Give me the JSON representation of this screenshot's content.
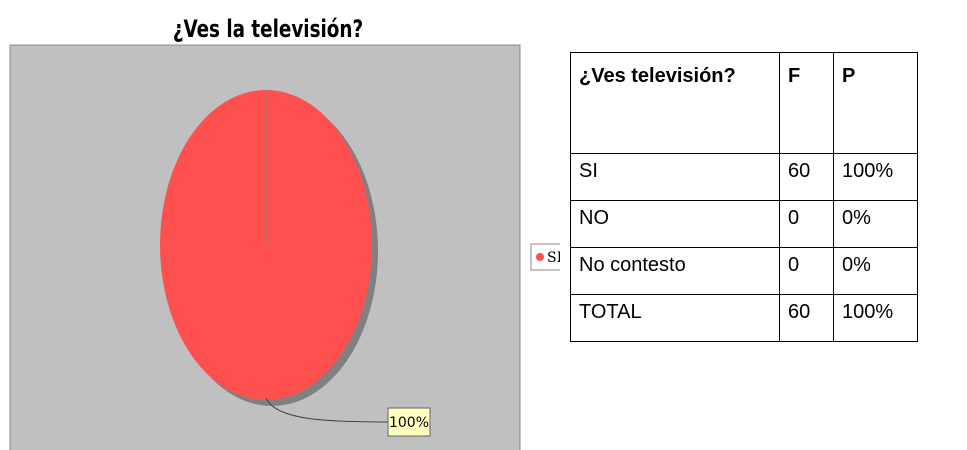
{
  "chart_data": {
    "type": "pie",
    "title": "¿Ves la televisión?",
    "categories": [
      "SI"
    ],
    "values": [
      100
    ],
    "value_labels": [
      "100%"
    ],
    "colors": [
      "#ff5050"
    ],
    "legend": "right"
  },
  "table": {
    "header": [
      "¿Ves televisión?",
      "F",
      "P"
    ],
    "rows": [
      [
        "SI",
        "60",
        "100%"
      ],
      [
        "NO",
        "0",
        "0%"
      ],
      [
        "No contesto",
        "0",
        "0%"
      ],
      [
        "TOTAL",
        "60",
        "100%"
      ]
    ]
  }
}
